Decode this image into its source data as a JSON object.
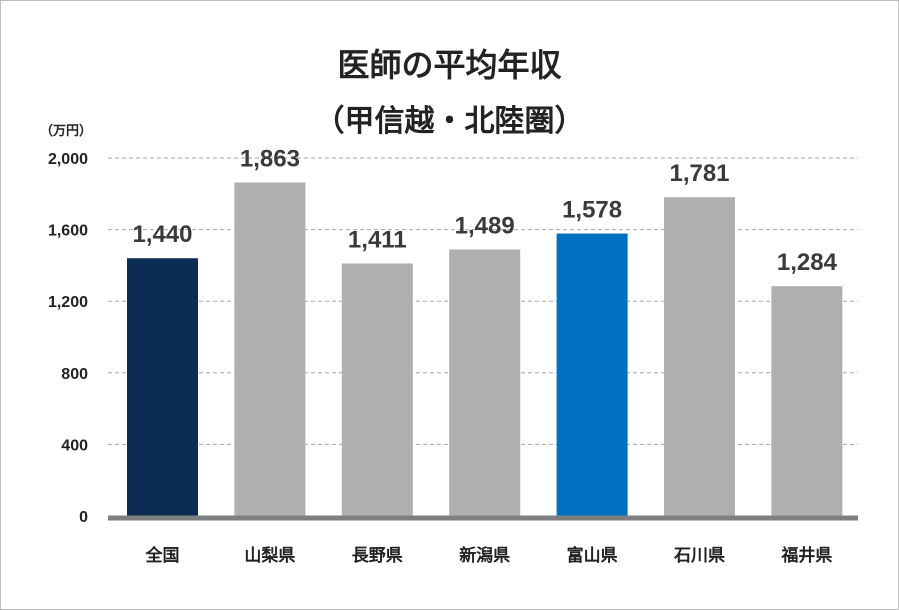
{
  "chart_data": {
    "type": "bar",
    "title": "医師の平均年収",
    "subtitle": "（甲信越・北陸圏）",
    "ylabel": "（万円）",
    "xlabel": "",
    "ylim": [
      0,
      2000
    ],
    "yticks": [
      0,
      400,
      800,
      1200,
      1600,
      2000
    ],
    "ytick_labels": [
      "0",
      "400",
      "800",
      "1,200",
      "1,600",
      "2,000"
    ],
    "grid": true,
    "categories": [
      "全国",
      "山梨県",
      "長野県",
      "新潟県",
      "富山県",
      "石川県",
      "福井県"
    ],
    "values": [
      1440,
      1863,
      1411,
      1489,
      1578,
      1781,
      1284
    ],
    "value_labels": [
      "1,440",
      "1,863",
      "1,411",
      "1,489",
      "1,578",
      "1,781",
      "1,284"
    ],
    "colors": [
      "#0b2d55",
      "#afafaf",
      "#afafaf",
      "#afafaf",
      "#0070c0",
      "#afafaf",
      "#afafaf"
    ],
    "axis_color": "#7f7f7f",
    "grid_color": "#a6a6a6"
  }
}
